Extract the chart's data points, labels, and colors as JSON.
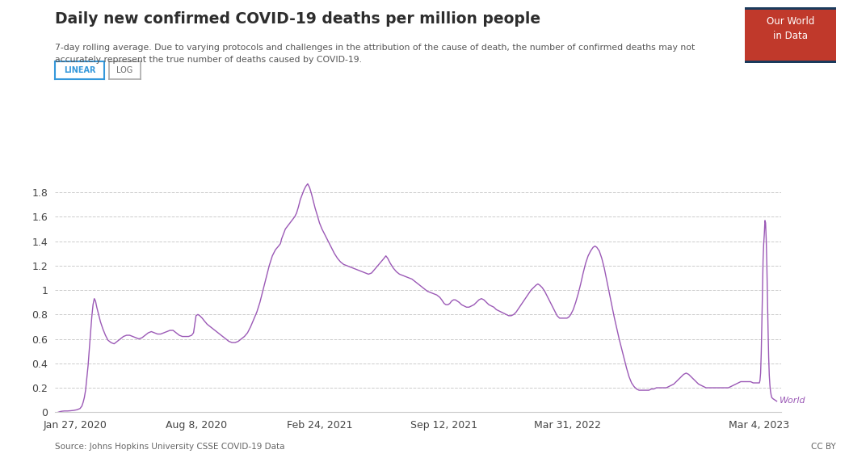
{
  "title": "Daily new confirmed COVID-19 deaths per million people",
  "subtitle": "7-day rolling average. Due to varying protocols and challenges in the attribution of the cause of death, the number of confirmed deaths may not\naccurately represent the true number of deaths caused by COVID-19.",
  "source": "Source: Johns Hopkins University CSSE COVID-19 Data",
  "license": "CC BY",
  "line_color": "#9b59b6",
  "background_color": "#ffffff",
  "grid_color": "#cccccc",
  "ylim": [
    0,
    1.95
  ],
  "yticks": [
    0,
    0.2,
    0.4,
    0.6,
    0.8,
    1.0,
    1.2,
    1.4,
    1.6,
    1.8
  ],
  "logo_bg": "#1a3a5c",
  "logo_red": "#c0392b",
  "logo_text": "Our World\nin Data",
  "linear_button_color": "#3498db",
  "log_button_color": "#aaaaaa",
  "world_label_color": "#9b59b6",
  "x_tick_labels": [
    "Jan 27, 2020",
    "Aug 8, 2020",
    "Feb 24, 2021",
    "Sep 12, 2021",
    "Mar 31, 2022",
    "Mar 4, 2023"
  ],
  "x_tick_positions_days": [
    27,
    222,
    421,
    622,
    821,
    1130
  ],
  "data_points": [
    [
      0,
      0.0
    ],
    [
      3,
      0.005
    ],
    [
      6,
      0.008
    ],
    [
      10,
      0.01
    ],
    [
      15,
      0.01
    ],
    [
      20,
      0.012
    ],
    [
      25,
      0.015
    ],
    [
      30,
      0.02
    ],
    [
      35,
      0.03
    ],
    [
      38,
      0.05
    ],
    [
      40,
      0.08
    ],
    [
      42,
      0.12
    ],
    [
      44,
      0.18
    ],
    [
      46,
      0.28
    ],
    [
      48,
      0.38
    ],
    [
      50,
      0.52
    ],
    [
      52,
      0.65
    ],
    [
      54,
      0.78
    ],
    [
      56,
      0.88
    ],
    [
      58,
      0.93
    ],
    [
      60,
      0.91
    ],
    [
      62,
      0.86
    ],
    [
      65,
      0.8
    ],
    [
      68,
      0.74
    ],
    [
      72,
      0.68
    ],
    [
      76,
      0.63
    ],
    [
      80,
      0.59
    ],
    [
      85,
      0.57
    ],
    [
      90,
      0.56
    ],
    [
      95,
      0.58
    ],
    [
      100,
      0.6
    ],
    [
      105,
      0.62
    ],
    [
      110,
      0.63
    ],
    [
      115,
      0.63
    ],
    [
      120,
      0.62
    ],
    [
      125,
      0.61
    ],
    [
      130,
      0.6
    ],
    [
      135,
      0.61
    ],
    [
      140,
      0.63
    ],
    [
      145,
      0.65
    ],
    [
      150,
      0.66
    ],
    [
      155,
      0.65
    ],
    [
      160,
      0.64
    ],
    [
      165,
      0.64
    ],
    [
      170,
      0.65
    ],
    [
      175,
      0.66
    ],
    [
      180,
      0.67
    ],
    [
      185,
      0.67
    ],
    [
      190,
      0.65
    ],
    [
      195,
      0.63
    ],
    [
      200,
      0.62
    ],
    [
      205,
      0.62
    ],
    [
      210,
      0.62
    ],
    [
      215,
      0.63
    ],
    [
      218,
      0.65
    ],
    [
      222,
      0.79
    ],
    [
      225,
      0.8
    ],
    [
      228,
      0.79
    ],
    [
      232,
      0.77
    ],
    [
      235,
      0.75
    ],
    [
      240,
      0.72
    ],
    [
      245,
      0.7
    ],
    [
      250,
      0.68
    ],
    [
      255,
      0.66
    ],
    [
      260,
      0.64
    ],
    [
      265,
      0.62
    ],
    [
      270,
      0.6
    ],
    [
      275,
      0.58
    ],
    [
      280,
      0.57
    ],
    [
      285,
      0.57
    ],
    [
      290,
      0.58
    ],
    [
      295,
      0.6
    ],
    [
      300,
      0.62
    ],
    [
      305,
      0.65
    ],
    [
      310,
      0.7
    ],
    [
      315,
      0.76
    ],
    [
      320,
      0.82
    ],
    [
      325,
      0.9
    ],
    [
      330,
      1.0
    ],
    [
      335,
      1.1
    ],
    [
      340,
      1.2
    ],
    [
      345,
      1.28
    ],
    [
      350,
      1.33
    ],
    [
      355,
      1.36
    ],
    [
      358,
      1.38
    ],
    [
      360,
      1.42
    ],
    [
      363,
      1.46
    ],
    [
      366,
      1.5
    ],
    [
      369,
      1.52
    ],
    [
      372,
      1.54
    ],
    [
      375,
      1.56
    ],
    [
      378,
      1.58
    ],
    [
      381,
      1.6
    ],
    [
      384,
      1.63
    ],
    [
      387,
      1.68
    ],
    [
      390,
      1.74
    ],
    [
      393,
      1.78
    ],
    [
      396,
      1.82
    ],
    [
      399,
      1.85
    ],
    [
      402,
      1.87
    ],
    [
      405,
      1.84
    ],
    [
      408,
      1.79
    ],
    [
      411,
      1.73
    ],
    [
      414,
      1.67
    ],
    [
      417,
      1.62
    ],
    [
      421,
      1.55
    ],
    [
      425,
      1.5
    ],
    [
      430,
      1.45
    ],
    [
      435,
      1.4
    ],
    [
      440,
      1.35
    ],
    [
      445,
      1.3
    ],
    [
      450,
      1.26
    ],
    [
      455,
      1.23
    ],
    [
      460,
      1.21
    ],
    [
      465,
      1.2
    ],
    [
      470,
      1.19
    ],
    [
      475,
      1.18
    ],
    [
      480,
      1.17
    ],
    [
      485,
      1.16
    ],
    [
      490,
      1.15
    ],
    [
      495,
      1.14
    ],
    [
      500,
      1.13
    ],
    [
      505,
      1.14
    ],
    [
      510,
      1.17
    ],
    [
      515,
      1.2
    ],
    [
      520,
      1.23
    ],
    [
      525,
      1.26
    ],
    [
      528,
      1.28
    ],
    [
      531,
      1.26
    ],
    [
      535,
      1.22
    ],
    [
      540,
      1.18
    ],
    [
      545,
      1.15
    ],
    [
      550,
      1.13
    ],
    [
      555,
      1.12
    ],
    [
      560,
      1.11
    ],
    [
      565,
      1.1
    ],
    [
      570,
      1.09
    ],
    [
      575,
      1.07
    ],
    [
      580,
      1.05
    ],
    [
      585,
      1.03
    ],
    [
      590,
      1.01
    ],
    [
      595,
      0.99
    ],
    [
      600,
      0.98
    ],
    [
      605,
      0.97
    ],
    [
      610,
      0.96
    ],
    [
      615,
      0.94
    ],
    [
      618,
      0.92
    ],
    [
      622,
      0.89
    ],
    [
      625,
      0.88
    ],
    [
      628,
      0.88
    ],
    [
      631,
      0.89
    ],
    [
      634,
      0.91
    ],
    [
      637,
      0.92
    ],
    [
      640,
      0.92
    ],
    [
      643,
      0.91
    ],
    [
      646,
      0.9
    ],
    [
      650,
      0.88
    ],
    [
      654,
      0.87
    ],
    [
      658,
      0.86
    ],
    [
      662,
      0.86
    ],
    [
      666,
      0.87
    ],
    [
      670,
      0.88
    ],
    [
      674,
      0.9
    ],
    [
      678,
      0.92
    ],
    [
      682,
      0.93
    ],
    [
      686,
      0.92
    ],
    [
      690,
      0.9
    ],
    [
      694,
      0.88
    ],
    [
      698,
      0.87
    ],
    [
      702,
      0.86
    ],
    [
      706,
      0.84
    ],
    [
      710,
      0.83
    ],
    [
      714,
      0.82
    ],
    [
      718,
      0.81
    ],
    [
      722,
      0.8
    ],
    [
      726,
      0.79
    ],
    [
      730,
      0.79
    ],
    [
      734,
      0.8
    ],
    [
      738,
      0.82
    ],
    [
      742,
      0.85
    ],
    [
      746,
      0.88
    ],
    [
      750,
      0.91
    ],
    [
      754,
      0.94
    ],
    [
      758,
      0.97
    ],
    [
      762,
      1.0
    ],
    [
      766,
      1.02
    ],
    [
      770,
      1.04
    ],
    [
      773,
      1.05
    ],
    [
      776,
      1.04
    ],
    [
      780,
      1.02
    ],
    [
      784,
      0.99
    ],
    [
      788,
      0.95
    ],
    [
      792,
      0.91
    ],
    [
      796,
      0.87
    ],
    [
      800,
      0.83
    ],
    [
      804,
      0.79
    ],
    [
      808,
      0.77
    ],
    [
      812,
      0.77
    ],
    [
      816,
      0.77
    ],
    [
      820,
      0.77
    ],
    [
      823,
      0.78
    ],
    [
      826,
      0.8
    ],
    [
      830,
      0.84
    ],
    [
      834,
      0.9
    ],
    [
      838,
      0.97
    ],
    [
      842,
      1.05
    ],
    [
      846,
      1.14
    ],
    [
      850,
      1.22
    ],
    [
      854,
      1.28
    ],
    [
      858,
      1.32
    ],
    [
      862,
      1.35
    ],
    [
      865,
      1.36
    ],
    [
      868,
      1.35
    ],
    [
      872,
      1.32
    ],
    [
      876,
      1.26
    ],
    [
      880,
      1.18
    ],
    [
      884,
      1.08
    ],
    [
      888,
      0.98
    ],
    [
      892,
      0.88
    ],
    [
      896,
      0.78
    ],
    [
      900,
      0.69
    ],
    [
      904,
      0.6
    ],
    [
      908,
      0.52
    ],
    [
      912,
      0.44
    ],
    [
      916,
      0.36
    ],
    [
      920,
      0.29
    ],
    [
      924,
      0.24
    ],
    [
      928,
      0.21
    ],
    [
      932,
      0.19
    ],
    [
      936,
      0.18
    ],
    [
      940,
      0.18
    ],
    [
      944,
      0.18
    ],
    [
      948,
      0.18
    ],
    [
      952,
      0.18
    ],
    [
      956,
      0.19
    ],
    [
      960,
      0.19
    ],
    [
      964,
      0.2
    ],
    [
      968,
      0.2
    ],
    [
      972,
      0.2
    ],
    [
      976,
      0.2
    ],
    [
      980,
      0.2
    ],
    [
      984,
      0.21
    ],
    [
      988,
      0.22
    ],
    [
      992,
      0.23
    ],
    [
      996,
      0.25
    ],
    [
      1000,
      0.27
    ],
    [
      1004,
      0.29
    ],
    [
      1008,
      0.31
    ],
    [
      1012,
      0.32
    ],
    [
      1016,
      0.31
    ],
    [
      1020,
      0.29
    ],
    [
      1024,
      0.27
    ],
    [
      1028,
      0.25
    ],
    [
      1032,
      0.23
    ],
    [
      1036,
      0.22
    ],
    [
      1040,
      0.21
    ],
    [
      1044,
      0.2
    ],
    [
      1048,
      0.2
    ],
    [
      1052,
      0.2
    ],
    [
      1056,
      0.2
    ],
    [
      1060,
      0.2
    ],
    [
      1064,
      0.2
    ],
    [
      1068,
      0.2
    ],
    [
      1072,
      0.2
    ],
    [
      1076,
      0.2
    ],
    [
      1080,
      0.2
    ],
    [
      1084,
      0.21
    ],
    [
      1088,
      0.22
    ],
    [
      1092,
      0.23
    ],
    [
      1096,
      0.24
    ],
    [
      1100,
      0.25
    ],
    [
      1104,
      0.25
    ],
    [
      1108,
      0.25
    ],
    [
      1112,
      0.25
    ],
    [
      1116,
      0.25
    ],
    [
      1120,
      0.24
    ],
    [
      1124,
      0.24
    ],
    [
      1128,
      0.24
    ],
    [
      1130,
      0.24
    ],
    [
      1131,
      0.26
    ],
    [
      1132,
      0.32
    ],
    [
      1133,
      0.48
    ],
    [
      1134,
      0.72
    ],
    [
      1135,
      1.0
    ],
    [
      1136,
      1.25
    ],
    [
      1137,
      1.38
    ],
    [
      1138,
      1.46
    ],
    [
      1139,
      1.57
    ],
    [
      1140,
      1.55
    ],
    [
      1141,
      1.42
    ],
    [
      1142,
      1.22
    ],
    [
      1143,
      0.95
    ],
    [
      1144,
      0.68
    ],
    [
      1145,
      0.45
    ],
    [
      1146,
      0.3
    ],
    [
      1147,
      0.22
    ],
    [
      1148,
      0.17
    ],
    [
      1149,
      0.14
    ],
    [
      1150,
      0.12
    ],
    [
      1152,
      0.11
    ],
    [
      1155,
      0.1
    ],
    [
      1158,
      0.09
    ]
  ]
}
